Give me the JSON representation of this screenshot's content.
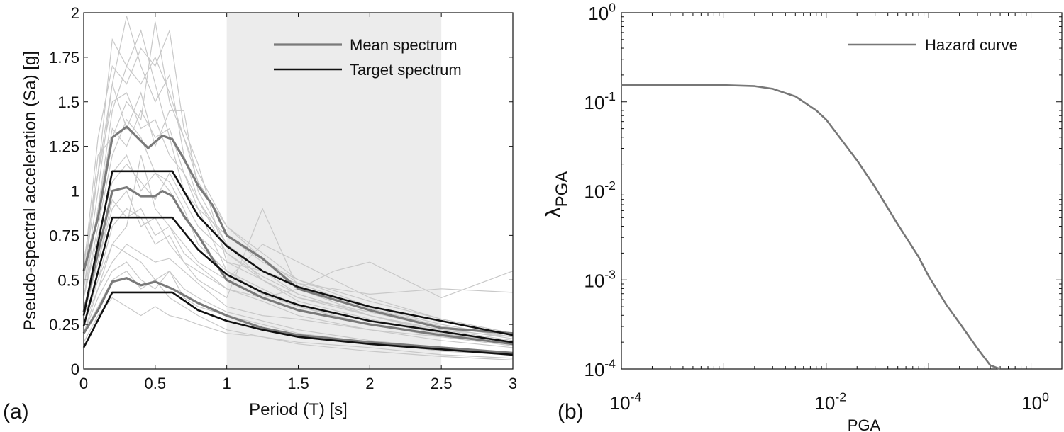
{
  "colors": {
    "background": "#ffffff",
    "axis": "#111111",
    "shade": "#ececec",
    "record": "#c8c8c8",
    "mean": "#7a7a7a",
    "target": "#111111",
    "hazard": "#777777"
  },
  "chart_data": [
    {
      "panel_label": "(a)",
      "type": "line",
      "xlabel": "Period (T) [s]",
      "ylabel": "Pseudo-spectral acceleration (Sa) [g]",
      "xlim": [
        0,
        3
      ],
      "ylim": [
        0,
        2
      ],
      "x_ticks": [
        0,
        0.5,
        1,
        1.5,
        2,
        2.5,
        3
      ],
      "x_tick_labels": [
        "0",
        "0.5",
        "1",
        "1.5",
        "2",
        "2.5",
        "3"
      ],
      "y_ticks": [
        0,
        0.25,
        0.5,
        0.75,
        1,
        1.25,
        1.5,
        1.75,
        2
      ],
      "y_tick_labels": [
        "0",
        "0.25",
        "0.5",
        "0.75",
        "1",
        "1.25",
        "1.5",
        "1.75",
        "2"
      ],
      "shaded_period_range": [
        1,
        2.5
      ],
      "legend": [
        {
          "label": "Mean spectrum",
          "style": "mean"
        },
        {
          "label": "Target spectrum",
          "style": "target"
        }
      ],
      "target_series": [
        {
          "name": "Target spectrum (upper)",
          "x": [
            0,
            0.2,
            0.62,
            0.8,
            1.0,
            1.25,
            1.5,
            2.0,
            2.5,
            3.0
          ],
          "y": [
            0.3,
            1.11,
            1.11,
            0.86,
            0.69,
            0.55,
            0.46,
            0.35,
            0.27,
            0.19
          ]
        },
        {
          "name": "Target spectrum (median)",
          "x": [
            0,
            0.2,
            0.62,
            0.8,
            1.0,
            1.25,
            1.5,
            2.0,
            2.5,
            3.0
          ],
          "y": [
            0.24,
            0.85,
            0.85,
            0.67,
            0.53,
            0.43,
            0.36,
            0.27,
            0.21,
            0.15
          ]
        },
        {
          "name": "Target spectrum (lower)",
          "x": [
            0,
            0.2,
            0.62,
            0.8,
            1.0,
            1.25,
            1.5,
            2.0,
            2.5,
            3.0
          ],
          "y": [
            0.12,
            0.43,
            0.43,
            0.33,
            0.27,
            0.22,
            0.18,
            0.14,
            0.11,
            0.08
          ]
        }
      ],
      "mean_series": [
        {
          "name": "Mean spectrum (upper)",
          "x": [
            0,
            0.1,
            0.2,
            0.3,
            0.35,
            0.45,
            0.55,
            0.62,
            0.7,
            0.8,
            0.9,
            1.0,
            1.25,
            1.5,
            2.0,
            2.5,
            3.0
          ],
          "y": [
            0.55,
            0.85,
            1.3,
            1.36,
            1.32,
            1.24,
            1.31,
            1.29,
            1.18,
            1.03,
            0.92,
            0.75,
            0.62,
            0.45,
            0.33,
            0.23,
            0.2
          ]
        },
        {
          "name": "Mean spectrum (median)",
          "x": [
            0,
            0.1,
            0.2,
            0.3,
            0.4,
            0.5,
            0.55,
            0.62,
            0.7,
            0.8,
            0.9,
            1.0,
            1.25,
            1.5,
            2.0,
            2.5,
            3.0
          ],
          "y": [
            0.32,
            0.65,
            1.0,
            1.02,
            0.97,
            0.97,
            1.0,
            0.97,
            0.86,
            0.75,
            0.62,
            0.5,
            0.4,
            0.33,
            0.25,
            0.19,
            0.14
          ]
        },
        {
          "name": "Mean spectrum (lower)",
          "x": [
            0,
            0.1,
            0.2,
            0.3,
            0.4,
            0.5,
            0.62,
            0.8,
            1.0,
            1.25,
            1.5,
            2.0,
            2.5,
            3.0
          ],
          "y": [
            0.2,
            0.33,
            0.49,
            0.51,
            0.47,
            0.49,
            0.45,
            0.37,
            0.3,
            0.23,
            0.19,
            0.15,
            0.12,
            0.09
          ]
        }
      ],
      "record_series": [
        {
          "x": [
            0,
            0.1,
            0.2,
            0.3,
            0.4,
            0.5,
            0.6,
            0.7,
            0.8,
            1.0,
            1.25,
            1.5,
            2.0,
            2.5,
            3.0
          ],
          "y": [
            0.6,
            1.1,
            1.6,
            1.98,
            1.7,
            1.5,
            1.65,
            1.2,
            0.95,
            0.7,
            0.5,
            0.4,
            0.3,
            0.22,
            0.18
          ]
        },
        {
          "x": [
            0,
            0.1,
            0.2,
            0.3,
            0.4,
            0.5,
            0.6,
            0.7,
            0.8,
            1.0,
            1.25,
            1.5,
            2.0,
            2.5,
            3.0
          ],
          "y": [
            0.4,
            0.9,
            1.45,
            1.7,
            1.9,
            1.6,
            1.3,
            1.0,
            0.9,
            0.55,
            0.42,
            0.35,
            0.27,
            0.2,
            0.15
          ]
        },
        {
          "x": [
            0,
            0.1,
            0.2,
            0.3,
            0.4,
            0.5,
            0.6,
            0.7,
            0.8,
            1.0,
            1.25,
            1.5,
            2.0,
            2.5,
            3.0
          ],
          "y": [
            0.5,
            1.2,
            1.3,
            1.5,
            1.4,
            1.95,
            1.5,
            1.3,
            1.1,
            0.8,
            0.65,
            0.5,
            0.38,
            0.28,
            0.2
          ]
        },
        {
          "x": [
            0,
            0.1,
            0.2,
            0.3,
            0.4,
            0.5,
            0.6,
            0.7,
            0.8,
            1.0,
            1.25,
            1.5,
            2.0,
            2.5,
            3.0
          ],
          "y": [
            0.3,
            0.7,
            1.1,
            1.2,
            1.0,
            1.1,
            1.05,
            0.9,
            0.7,
            0.55,
            0.45,
            0.35,
            0.25,
            0.18,
            0.13
          ]
        },
        {
          "x": [
            0,
            0.1,
            0.2,
            0.3,
            0.4,
            0.5,
            0.6,
            0.7,
            0.8,
            1.0,
            1.25,
            1.5,
            2.0,
            2.5,
            3.0
          ],
          "y": [
            0.45,
            1.0,
            1.6,
            1.35,
            1.55,
            1.25,
            1.45,
            1.45,
            1.0,
            0.7,
            0.55,
            0.42,
            0.3,
            0.22,
            0.16
          ]
        },
        {
          "x": [
            0,
            0.1,
            0.2,
            0.3,
            0.4,
            0.5,
            0.6,
            0.7,
            0.8,
            1.0,
            1.25,
            1.5,
            2.0,
            2.5,
            3.0
          ],
          "y": [
            0.25,
            0.5,
            0.8,
            0.9,
            0.85,
            0.7,
            0.75,
            0.6,
            0.5,
            0.4,
            0.9,
            0.45,
            0.3,
            0.2,
            0.14
          ]
        },
        {
          "x": [
            0,
            0.1,
            0.2,
            0.3,
            0.4,
            0.5,
            0.6,
            0.7,
            0.8,
            1.0,
            1.25,
            1.5,
            2.0,
            2.5,
            3.0
          ],
          "y": [
            0.2,
            0.4,
            0.55,
            0.6,
            0.5,
            0.45,
            0.55,
            0.4,
            0.35,
            0.3,
            0.25,
            0.2,
            0.15,
            0.1,
            0.08
          ]
        },
        {
          "x": [
            0,
            0.1,
            0.2,
            0.3,
            0.4,
            0.5,
            0.6,
            0.7,
            0.8,
            1.0,
            1.25,
            1.5,
            2.0,
            2.5,
            3.0
          ],
          "y": [
            0.15,
            0.3,
            0.4,
            0.35,
            0.3,
            0.35,
            0.3,
            0.28,
            0.25,
            0.2,
            0.18,
            0.14,
            0.1,
            0.07,
            0.05
          ]
        },
        {
          "x": [
            0,
            0.1,
            0.2,
            0.3,
            0.4,
            0.5,
            0.6,
            0.7,
            0.8,
            1.0,
            1.25,
            1.5,
            1.75,
            2.0,
            2.25,
            2.5,
            3.0
          ],
          "y": [
            0.35,
            0.6,
            0.9,
            1.0,
            0.8,
            0.85,
            0.7,
            0.6,
            0.55,
            0.45,
            0.4,
            0.45,
            0.55,
            0.6,
            0.5,
            0.4,
            0.55
          ]
        },
        {
          "x": [
            0,
            0.1,
            0.2,
            0.3,
            0.4,
            0.5,
            0.6,
            0.7,
            0.8,
            1.0,
            1.25,
            1.5,
            2.0,
            2.5,
            3.0
          ],
          "y": [
            0.55,
            1.3,
            1.7,
            1.6,
            1.8,
            1.7,
            1.9,
            1.35,
            1.15,
            0.6,
            0.5,
            0.38,
            0.28,
            0.2,
            0.15
          ]
        },
        {
          "x": [
            0,
            0.1,
            0.2,
            0.3,
            0.4,
            0.5,
            0.6,
            0.7,
            0.8,
            1.0,
            1.25,
            1.5,
            2.0,
            2.5,
            3.0
          ],
          "y": [
            0.3,
            0.5,
            0.7,
            0.8,
            1.2,
            0.9,
            0.8,
            0.7,
            0.6,
            0.5,
            0.7,
            0.6,
            0.4,
            0.28,
            0.2
          ]
        },
        {
          "x": [
            0,
            0.1,
            0.2,
            0.3,
            0.4,
            0.5,
            0.6,
            0.7,
            0.8,
            1.0,
            1.25,
            1.5,
            2.0,
            2.5,
            3.0
          ],
          "y": [
            0.2,
            0.35,
            0.5,
            0.55,
            0.45,
            0.5,
            0.4,
            0.35,
            0.3,
            0.22,
            0.18,
            0.15,
            0.12,
            0.08,
            0.06
          ]
        },
        {
          "x": [
            0,
            0.1,
            0.2,
            0.3,
            0.4,
            0.5,
            0.6,
            0.7,
            0.8,
            1.0,
            1.25,
            1.5,
            2.0,
            2.5,
            3.0
          ],
          "y": [
            0.4,
            0.8,
            1.2,
            1.4,
            1.3,
            1.1,
            1.0,
            0.85,
            0.75,
            0.6,
            0.55,
            0.48,
            0.42,
            0.45,
            0.43
          ]
        },
        {
          "x": [
            0,
            0.1,
            0.2,
            0.3,
            0.4,
            0.5,
            0.6,
            0.7,
            0.8,
            1.0,
            1.25,
            1.5,
            2.0,
            2.5,
            3.0
          ],
          "y": [
            0.5,
            1.1,
            1.5,
            1.55,
            1.35,
            1.4,
            1.2,
            1.1,
            0.9,
            0.75,
            0.6,
            0.5,
            0.35,
            0.25,
            0.18
          ]
        },
        {
          "x": [
            0,
            0.1,
            0.2,
            0.3,
            0.4,
            0.5,
            0.6,
            0.7,
            0.8,
            1.0,
            1.25,
            1.5,
            2.0,
            2.5,
            3.0
          ],
          "y": [
            0.25,
            0.45,
            0.6,
            0.7,
            0.65,
            0.6,
            0.62,
            0.55,
            0.48,
            0.35,
            0.3,
            0.28,
            0.22,
            0.18,
            0.15
          ]
        },
        {
          "x": [
            0,
            0.1,
            0.2,
            0.3,
            0.4,
            0.5,
            0.6,
            0.7,
            0.8,
            1.0,
            1.25,
            1.5,
            2.0,
            2.5,
            3.0
          ],
          "y": [
            0.45,
            0.9,
            1.35,
            1.25,
            1.45,
            1.3,
            1.35,
            1.1,
            0.95,
            0.65,
            0.5,
            0.4,
            0.32,
            0.23,
            0.17
          ]
        },
        {
          "x": [
            0,
            0.1,
            0.2,
            0.3,
            0.4,
            0.5,
            0.6,
            0.7,
            0.8,
            1.0,
            1.25,
            1.5,
            2.0,
            2.5,
            3.0
          ],
          "y": [
            0.3,
            0.6,
            0.95,
            0.85,
            0.9,
            0.75,
            0.8,
            0.65,
            0.58,
            0.45,
            0.38,
            0.3,
            0.22,
            0.16,
            0.12
          ]
        },
        {
          "x": [
            0,
            0.1,
            0.2,
            0.3,
            0.4,
            0.5,
            0.6,
            0.7,
            0.8,
            1.0,
            1.25,
            1.5,
            2.0,
            2.5,
            3.0
          ],
          "y": [
            0.6,
            1.1,
            1.85,
            1.7,
            1.6,
            1.75,
            1.55,
            1.3,
            1.05,
            0.8,
            0.62,
            0.48,
            0.34,
            0.24,
            0.18
          ]
        },
        {
          "x": [
            0,
            0.1,
            0.2,
            0.3,
            0.4,
            0.5,
            0.6,
            0.7,
            0.8,
            1.0,
            1.25,
            1.5,
            2.0,
            2.5,
            3.0
          ],
          "y": [
            0.2,
            0.45,
            0.7,
            0.65,
            0.6,
            0.5,
            0.55,
            0.45,
            0.4,
            0.32,
            0.27,
            0.22,
            0.16,
            0.12,
            0.09
          ]
        },
        {
          "x": [
            0,
            0.1,
            0.2,
            0.3,
            0.4,
            0.5,
            0.6,
            0.7,
            0.8,
            1.0,
            1.25,
            1.5,
            2.0,
            2.5,
            3.0
          ],
          "y": [
            0.4,
            0.75,
            1.05,
            1.15,
            1.05,
            0.95,
            1.1,
            0.95,
            0.8,
            0.65,
            0.52,
            0.42,
            0.3,
            0.21,
            0.15
          ]
        }
      ]
    },
    {
      "panel_label": "(b)",
      "type": "line",
      "scale": "log-log",
      "xlabel": "PGA",
      "ylabel_symbol": "λ",
      "ylabel_sub": "PGA",
      "xlim": [
        0.0001,
        2
      ],
      "ylim": [
        0.0001,
        1
      ],
      "x_tick_labels": [
        {
          "value": 0.0001,
          "base": "10",
          "exp": "-4"
        },
        {
          "value": 0.01,
          "base": "10",
          "exp": "-2"
        },
        {
          "value": 1,
          "base": "10",
          "exp": "0"
        }
      ],
      "y_tick_labels": [
        {
          "value": 0.0001,
          "base": "10",
          "exp": "-4"
        },
        {
          "value": 0.001,
          "base": "10",
          "exp": "-3"
        },
        {
          "value": 0.01,
          "base": "10",
          "exp": "-2"
        },
        {
          "value": 0.1,
          "base": "10",
          "exp": "-1"
        },
        {
          "value": 1,
          "base": "10",
          "exp": "0"
        }
      ],
      "legend": [
        {
          "label": "Hazard curve",
          "style": "hazard"
        }
      ],
      "series": [
        {
          "name": "Hazard curve",
          "x": [
            0.0001,
            0.0005,
            0.001,
            0.002,
            0.003,
            0.005,
            0.008,
            0.01,
            0.02,
            0.03,
            0.05,
            0.08,
            0.1,
            0.15,
            0.2,
            0.3,
            0.4,
            0.5
          ],
          "y": [
            0.155,
            0.155,
            0.154,
            0.15,
            0.14,
            0.115,
            0.08,
            0.063,
            0.022,
            0.011,
            0.0042,
            0.0018,
            0.0011,
            0.00052,
            0.00033,
            0.00017,
            0.00011,
            0.0001
          ]
        }
      ]
    }
  ]
}
